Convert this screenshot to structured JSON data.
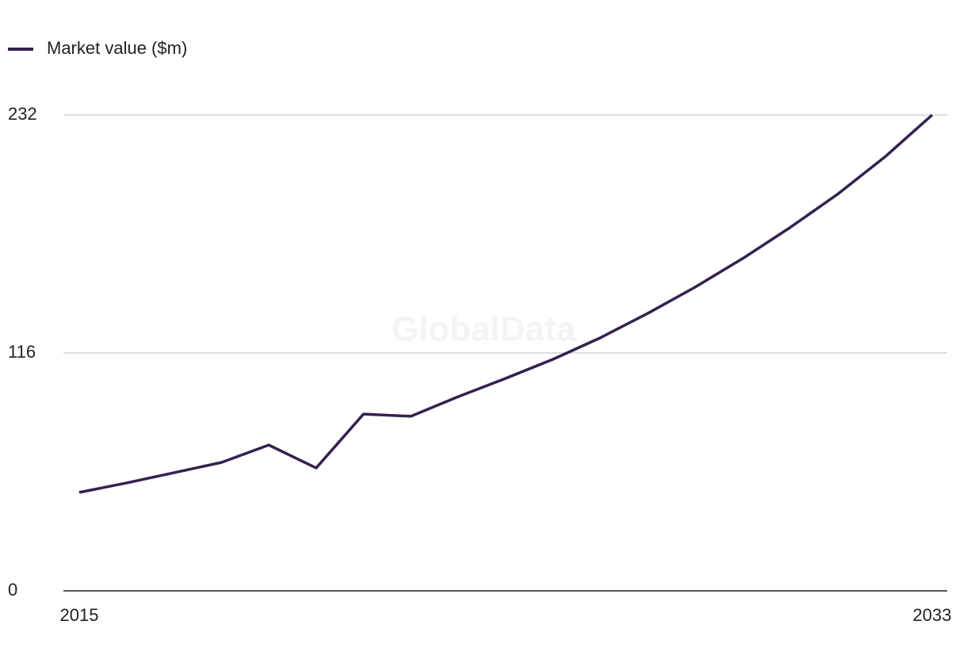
{
  "chart_data": {
    "type": "line",
    "watermark": "GlobalData",
    "x": [
      2015,
      2016,
      2017,
      2018,
      2019,
      2020,
      2021,
      2022,
      2023,
      2024,
      2025,
      2026,
      2027,
      2028,
      2029,
      2030,
      2031,
      2032,
      2033
    ],
    "series": [
      {
        "name": "Market value ($m)",
        "color": "#35204f",
        "values": [
          48,
          52.6,
          57.6,
          62.6,
          71.1,
          59.9,
          86.2,
          85.1,
          94.7,
          103.6,
          112.9,
          123.4,
          135.3,
          148.1,
          162.0,
          177.1,
          193.3,
          211.5,
          232
        ]
      }
    ],
    "xlim": [
      2015,
      2033
    ],
    "xticks": [
      2015,
      2033
    ],
    "ylim": [
      0,
      232
    ],
    "yticks": [
      0,
      116,
      232
    ],
    "grid": true,
    "legend": "top-left"
  }
}
